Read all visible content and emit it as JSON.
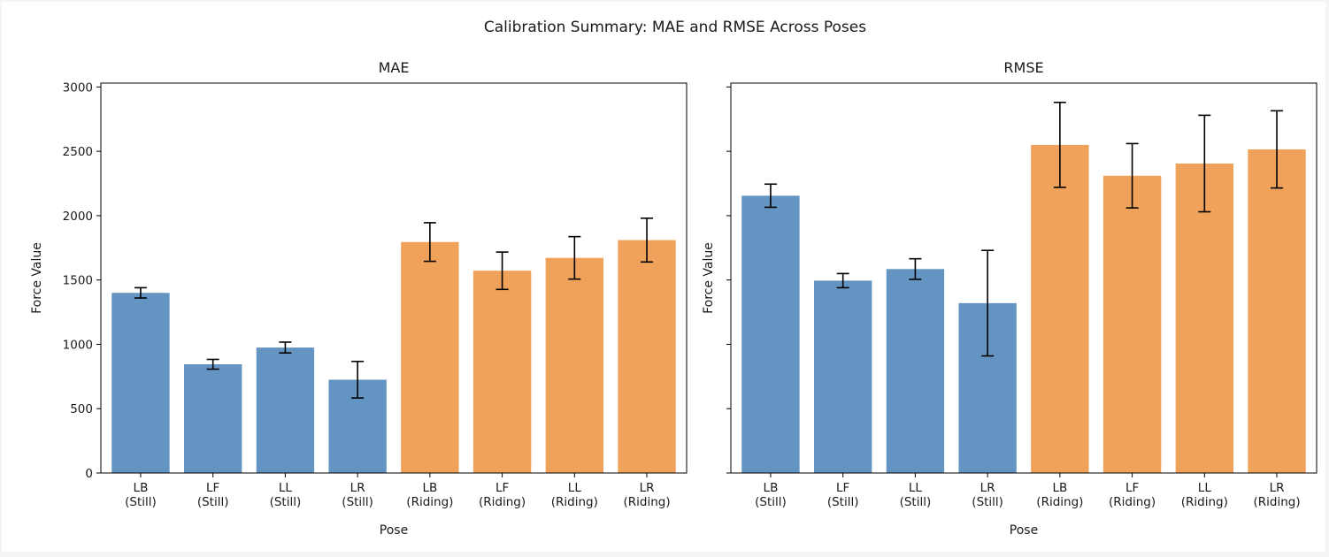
{
  "figure": {
    "title": "Calibration Summary: MAE and RMSE Across Poses"
  },
  "colors": {
    "still": "#6495c2",
    "riding": "#f0a25a",
    "error_bar": "#000000"
  },
  "chart_data": [
    {
      "type": "bar",
      "title": "MAE",
      "xlabel": "Pose",
      "ylabel": "Force Value",
      "ylim": [
        0,
        3030
      ],
      "yticks": [
        0,
        500,
        1000,
        1500,
        2000,
        2500,
        3000
      ],
      "show_ytick_labels": true,
      "grid": false,
      "categories": [
        [
          "LB",
          "(Still)"
        ],
        [
          "LF",
          "(Still)"
        ],
        [
          "LL",
          "(Still)"
        ],
        [
          "LR",
          "(Still)"
        ],
        [
          "LB",
          "(Riding)"
        ],
        [
          "LF",
          "(Riding)"
        ],
        [
          "LL",
          "(Riding)"
        ],
        [
          "LR",
          "(Riding)"
        ]
      ],
      "groups": [
        "still",
        "still",
        "still",
        "still",
        "riding",
        "riding",
        "riding",
        "riding"
      ],
      "values": [
        1400,
        845,
        975,
        725,
        1795,
        1572,
        1672,
        1810
      ],
      "errors": [
        40,
        38,
        42,
        142,
        150,
        145,
        165,
        170
      ]
    },
    {
      "type": "bar",
      "title": "RMSE",
      "xlabel": "Pose",
      "ylabel": "Force Value",
      "ylim": [
        0,
        3030
      ],
      "yticks": [
        0,
        500,
        1000,
        1500,
        2000,
        2500,
        3000
      ],
      "show_ytick_labels": false,
      "grid": false,
      "categories": [
        [
          "LB",
          "(Still)"
        ],
        [
          "LF",
          "(Still)"
        ],
        [
          "LL",
          "(Still)"
        ],
        [
          "LR",
          "(Still)"
        ],
        [
          "LB",
          "(Riding)"
        ],
        [
          "LF",
          "(Riding)"
        ],
        [
          "LL",
          "(Riding)"
        ],
        [
          "LR",
          "(Riding)"
        ]
      ],
      "groups": [
        "still",
        "still",
        "still",
        "still",
        "riding",
        "riding",
        "riding",
        "riding"
      ],
      "values": [
        2155,
        1495,
        1585,
        1320,
        2550,
        2310,
        2405,
        2515
      ],
      "errors": [
        90,
        55,
        80,
        410,
        330,
        250,
        375,
        300
      ]
    }
  ]
}
